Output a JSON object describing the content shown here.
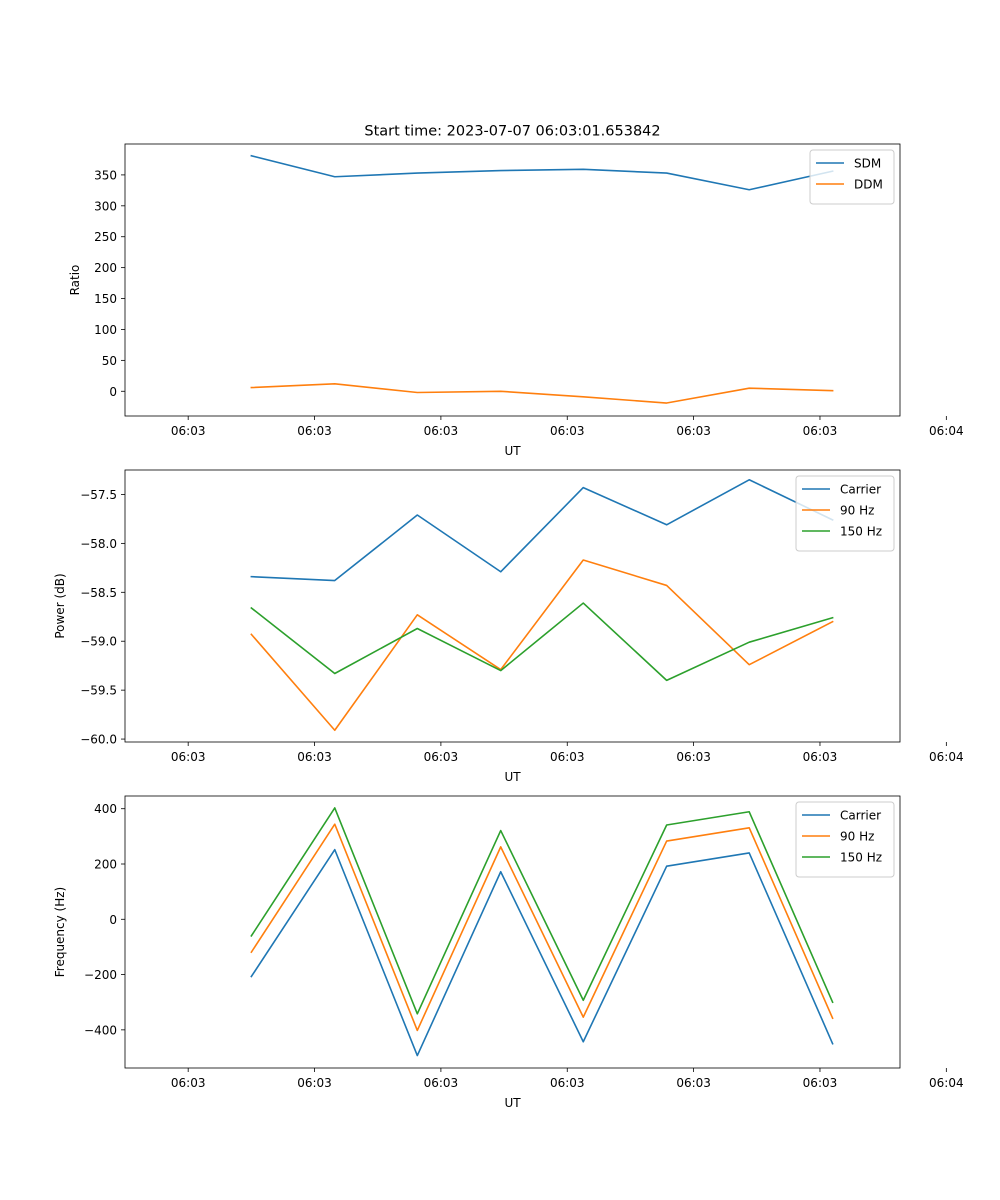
{
  "figure": {
    "title": "Start time: 2023-07-07 06:03:01.653842"
  },
  "chart_data": [
    {
      "type": "line",
      "xlabel": "UT",
      "ylabel": "Ratio",
      "xlim": [
        -0.75,
        8.45
      ],
      "x_ticks": [
        0,
        1.5,
        3,
        4.5,
        6,
        7.5,
        9
      ],
      "x_tick_labels": [
        "06:03",
        "06:03",
        "06:03",
        "06:03",
        "06:03",
        "06:03",
        "06:04"
      ],
      "ylim": [
        -40,
        400
      ],
      "y_ticks": [
        0,
        50,
        100,
        150,
        200,
        250,
        300,
        350
      ],
      "y_tick_labels": [
        "0",
        "50",
        "100",
        "150",
        "200",
        "250",
        "300",
        "350"
      ],
      "x": [
        0.75,
        1.74,
        2.72,
        3.71,
        4.69,
        5.68,
        6.66,
        7.65
      ],
      "series": [
        {
          "name": "SDM",
          "color": "#1f77b4",
          "values": [
            381,
            347,
            353,
            357,
            359,
            353,
            326,
            356
          ]
        },
        {
          "name": "DDM",
          "color": "#ff7f0e",
          "values": [
            6,
            12,
            -2,
            0,
            -9,
            -19,
            5,
            1
          ]
        }
      ]
    },
    {
      "type": "line",
      "xlabel": "UT",
      "ylabel": "Power (dB)",
      "xlim": [
        -0.75,
        8.45
      ],
      "x_ticks": [
        0,
        1.5,
        3,
        4.5,
        6,
        7.5,
        9
      ],
      "x_tick_labels": [
        "06:03",
        "06:03",
        "06:03",
        "06:03",
        "06:03",
        "06:03",
        "06:04"
      ],
      "ylim": [
        -60.03,
        -57.25
      ],
      "y_ticks": [
        -60,
        -59.5,
        -59,
        -58.5,
        -58,
        -57.5
      ],
      "y_tick_labels": [
        "−60.0",
        "−59.5",
        "−59.0",
        "−58.5",
        "−58.0",
        "−57.5"
      ],
      "x": [
        0.75,
        1.74,
        2.72,
        3.71,
        4.69,
        5.68,
        6.66,
        7.65
      ],
      "series": [
        {
          "name": "Carrier",
          "color": "#1f77b4",
          "values": [
            -58.34,
            -58.38,
            -57.71,
            -58.29,
            -57.43,
            -57.81,
            -57.35,
            -57.76
          ]
        },
        {
          "name": "90 Hz",
          "color": "#ff7f0e",
          "values": [
            -58.93,
            -59.91,
            -58.73,
            -59.29,
            -58.17,
            -58.43,
            -59.24,
            -58.8
          ]
        },
        {
          "name": "150 Hz",
          "color": "#2ca02c",
          "values": [
            -58.66,
            -59.33,
            -58.87,
            -59.3,
            -58.61,
            -59.4,
            -59.01,
            -58.76
          ]
        }
      ]
    },
    {
      "type": "line",
      "xlabel": "UT",
      "ylabel": "Frequency (Hz)",
      "xlim": [
        -0.75,
        8.45
      ],
      "x_ticks": [
        0,
        1.5,
        3,
        4.5,
        6,
        7.5,
        9
      ],
      "x_tick_labels": [
        "06:03",
        "06:03",
        "06:03",
        "06:03",
        "06:03",
        "06:03",
        "06:04"
      ],
      "ylim": [
        -538,
        446
      ],
      "y_ticks": [
        -400,
        -200,
        0,
        200,
        400
      ],
      "y_tick_labels": [
        "−400",
        "−200",
        "0",
        "200",
        "400"
      ],
      "x": [
        0.75,
        1.74,
        2.72,
        3.71,
        4.69,
        5.68,
        6.66,
        7.65
      ],
      "series": [
        {
          "name": "Carrier",
          "color": "#1f77b4",
          "values": [
            -207,
            252,
            -493,
            172,
            -443,
            192,
            240,
            -450
          ]
        },
        {
          "name": "90 Hz",
          "color": "#ff7f0e",
          "values": [
            -119,
            344,
            -402,
            262,
            -354,
            283,
            331,
            -358
          ]
        },
        {
          "name": "150 Hz",
          "color": "#2ca02c",
          "values": [
            -60,
            403,
            -342,
            321,
            -293,
            341,
            389,
            -300
          ]
        }
      ]
    }
  ]
}
